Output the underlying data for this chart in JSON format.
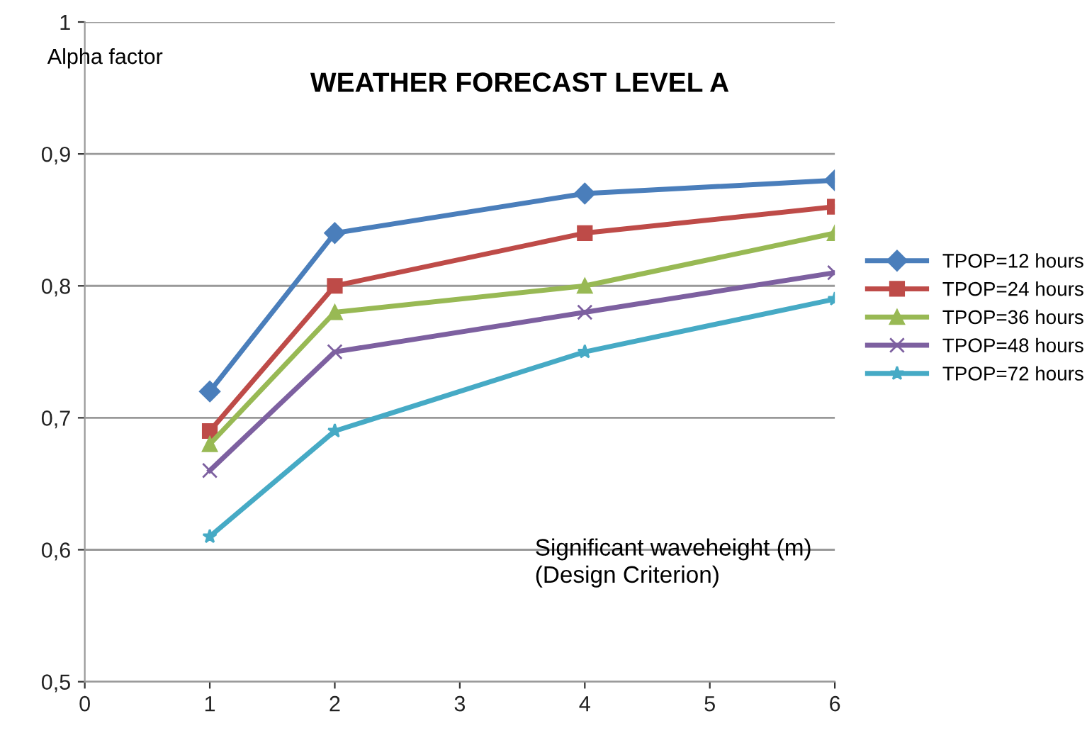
{
  "chart_data": {
    "type": "line",
    "title": "WEATHER FORECAST LEVEL A",
    "xlabel": "Significant waveheight (m)\n(Design Criterion)",
    "ylabel": "Alpha factor",
    "x": [
      1,
      2,
      4,
      6
    ],
    "series": [
      {
        "name": "TPOP=12 hours",
        "color": "#4a7ebb",
        "marker": "diamond",
        "values": [
          0.72,
          0.84,
          0.87,
          0.88
        ]
      },
      {
        "name": "TPOP=24 hours",
        "color": "#be4b48",
        "marker": "square",
        "values": [
          0.69,
          0.8,
          0.84,
          0.86
        ]
      },
      {
        "name": "TPOP=36 hours",
        "color": "#98b954",
        "marker": "triangle",
        "values": [
          0.68,
          0.78,
          0.8,
          0.84
        ]
      },
      {
        "name": "TPOP=48 hours",
        "color": "#7d60a0",
        "marker": "cross",
        "values": [
          0.66,
          0.75,
          0.78,
          0.81
        ]
      },
      {
        "name": "TPOP=72 hours",
        "color": "#46aac5",
        "marker": "star",
        "values": [
          0.61,
          0.69,
          0.75,
          0.79
        ]
      }
    ],
    "xlim": [
      0,
      6
    ],
    "xticks": [
      0,
      1,
      2,
      3,
      4,
      5,
      6
    ],
    "ylim": [
      0.5,
      1
    ],
    "yticks": [
      {
        "value": 0.5,
        "label": "0,5"
      },
      {
        "value": 0.6,
        "label": "0,6"
      },
      {
        "value": 0.7,
        "label": "0,7"
      },
      {
        "value": 0.8,
        "label": "0,8"
      },
      {
        "value": 0.9,
        "label": "0,9"
      },
      1
    ],
    "grid": "y",
    "legend": "right",
    "line_style": "solid"
  }
}
